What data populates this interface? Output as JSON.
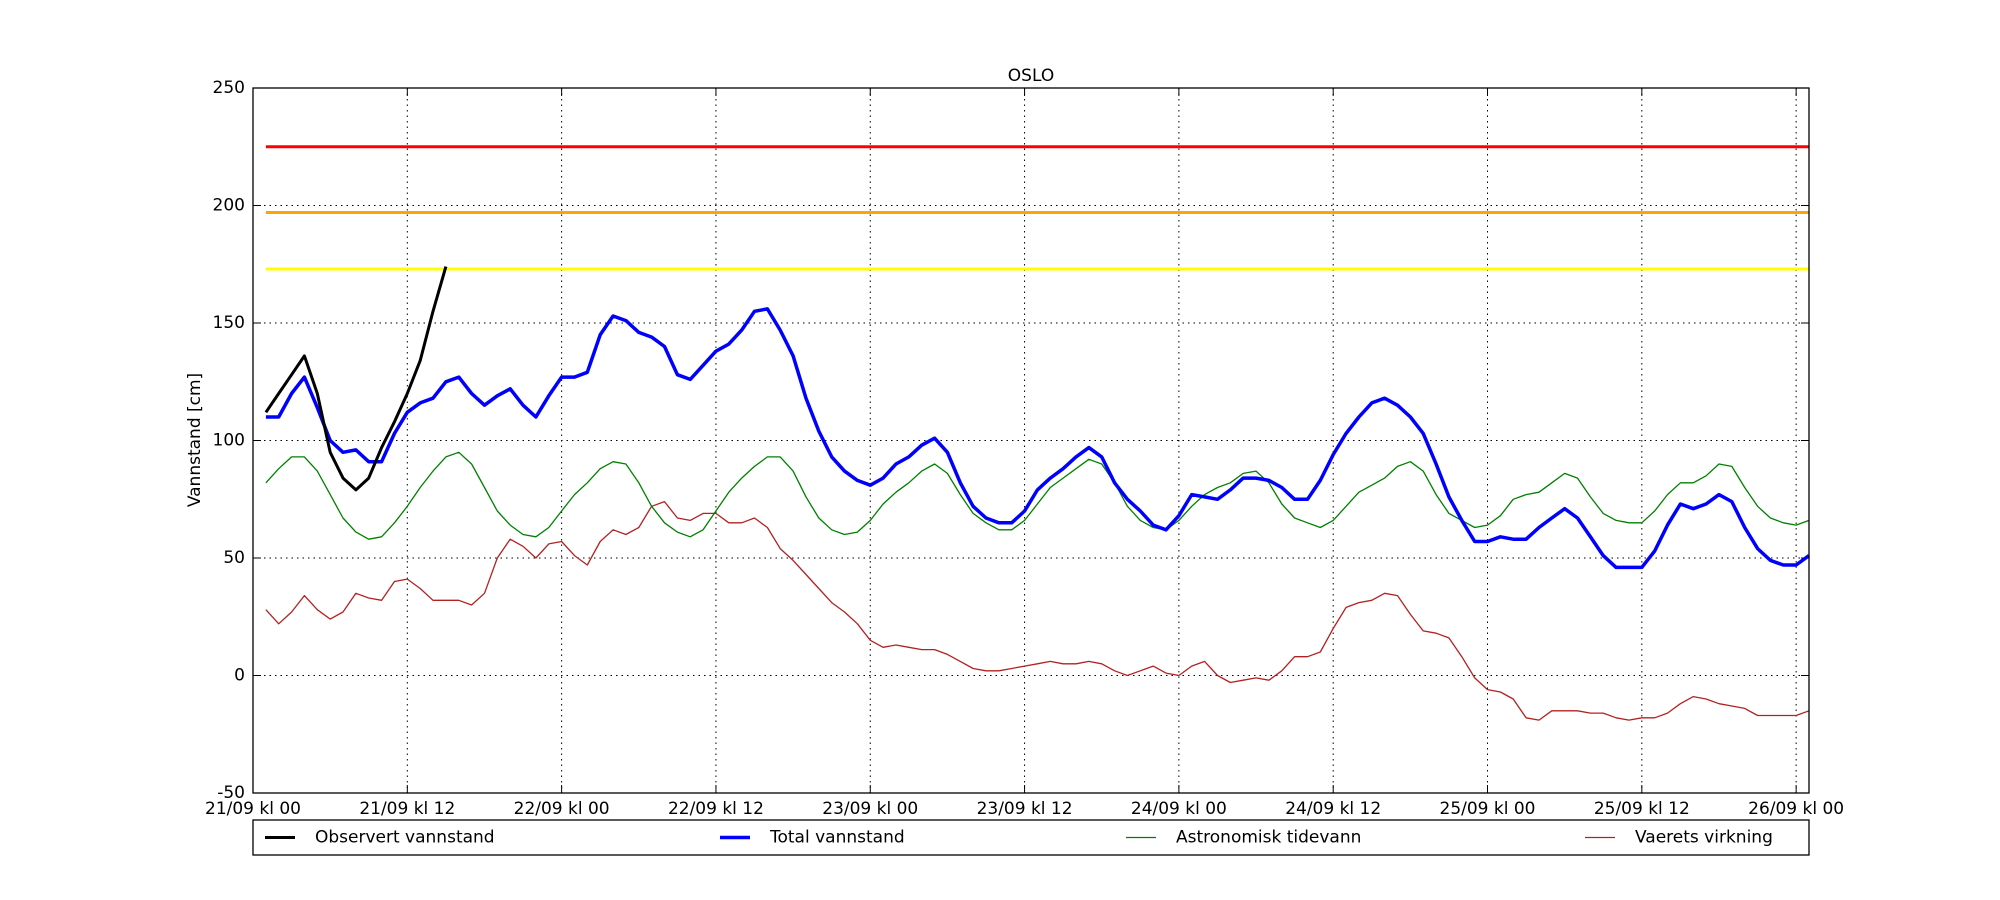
{
  "chart_data": {
    "type": "line",
    "title": "OSLO",
    "y_label": "Vannstand [cm]",
    "xlim": [
      0,
      121
    ],
    "ylim": [
      -50,
      250
    ],
    "xticks": [
      {
        "value": 0,
        "label": "21/09 kl 00"
      },
      {
        "value": 12,
        "label": "21/09 kl 12"
      },
      {
        "value": 24,
        "label": "22/09 kl 00"
      },
      {
        "value": 36,
        "label": "22/09 kl 12"
      },
      {
        "value": 48,
        "label": "23/09 kl 00"
      },
      {
        "value": 60,
        "label": "23/09 kl 12"
      },
      {
        "value": 72,
        "label": "24/09 kl 00"
      },
      {
        "value": 84,
        "label": "24/09 kl 12"
      },
      {
        "value": 96,
        "label": "25/09 kl 00"
      },
      {
        "value": 108,
        "label": "25/09 kl 12"
      },
      {
        "value": 120,
        "label": "26/09 kl 00"
      }
    ],
    "yticks": [
      -50,
      0,
      50,
      100,
      150,
      200,
      250
    ],
    "grid": true,
    "legend": "below",
    "thresholds": [
      {
        "value": 225,
        "color": "#ff0000"
      },
      {
        "value": 197,
        "color": "#ffa500"
      },
      {
        "value": 173,
        "color": "#ffff00"
      }
    ],
    "x": [
      1,
      2,
      3,
      4,
      5,
      6,
      7,
      8,
      9,
      10,
      11,
      12,
      13,
      14,
      15,
      16,
      17,
      18,
      19,
      20,
      21,
      22,
      23,
      24,
      25,
      26,
      27,
      28,
      29,
      30,
      31,
      32,
      33,
      34,
      35,
      36,
      37,
      38,
      39,
      40,
      41,
      42,
      43,
      44,
      45,
      46,
      47,
      48,
      49,
      50,
      51,
      52,
      53,
      54,
      55,
      56,
      57,
      58,
      59,
      60,
      61,
      62,
      63,
      64,
      65,
      66,
      67,
      68,
      69,
      70,
      71,
      72,
      73,
      74,
      75,
      76,
      77,
      78,
      79,
      80,
      81,
      82,
      83,
      84,
      85,
      86,
      87,
      88,
      89,
      90,
      91,
      92,
      93,
      94,
      95,
      96,
      97,
      98,
      99,
      100,
      101,
      102,
      103,
      104,
      105,
      106,
      107,
      108,
      109,
      110,
      111,
      112,
      113,
      114,
      115,
      116,
      117,
      118,
      119,
      120,
      121
    ],
    "series": [
      {
        "name": "Observert vannstand",
        "color": "#000000",
        "width": 3,
        "x": [
          1,
          2,
          3,
          4,
          5,
          6,
          7,
          8,
          9,
          10,
          11,
          12,
          13,
          14,
          15
        ],
        "values": [
          112,
          120,
          128,
          136,
          120,
          95,
          84,
          79,
          84,
          97,
          108,
          120,
          134,
          155,
          174
        ]
      },
      {
        "name": "Total vannstand",
        "color": "#0000ff",
        "width": 3.5,
        "values": [
          110,
          110,
          120,
          127,
          114,
          100,
          95,
          96,
          91,
          91,
          103,
          112,
          116,
          118,
          125,
          127,
          120,
          115,
          119,
          122,
          115,
          110,
          119,
          127,
          127,
          129,
          145,
          153,
          151,
          146,
          144,
          140,
          128,
          126,
          132,
          138,
          141,
          147,
          155,
          156,
          147,
          136,
          118,
          104,
          93,
          87,
          83,
          81,
          84,
          90,
          93,
          98,
          101,
          95,
          82,
          72,
          67,
          65,
          65,
          70,
          79,
          84,
          88,
          93,
          97,
          93,
          82,
          75,
          70,
          64,
          62,
          68,
          77,
          76,
          75,
          79,
          84,
          84,
          83,
          80,
          75,
          75,
          83,
          94,
          103,
          110,
          116,
          118,
          115,
          110,
          103,
          90,
          76,
          66,
          57,
          57,
          59,
          58,
          58,
          63,
          67,
          71,
          67,
          59,
          51,
          46,
          46,
          46,
          53,
          64,
          73,
          71,
          73,
          77,
          74,
          63,
          54,
          49,
          47,
          47,
          51
        ]
      },
      {
        "name": "Astronomisk tidevann",
        "color": "#008000",
        "width": 1.3,
        "values": [
          82,
          88,
          93,
          93,
          87,
          77,
          67,
          61,
          58,
          59,
          65,
          72,
          80,
          87,
          93,
          95,
          90,
          80,
          70,
          64,
          60,
          59,
          63,
          70,
          77,
          82,
          88,
          91,
          90,
          82,
          72,
          65,
          61,
          59,
          62,
          70,
          78,
          84,
          89,
          93,
          93,
          87,
          76,
          67,
          62,
          60,
          61,
          66,
          73,
          78,
          82,
          87,
          90,
          86,
          77,
          69,
          65,
          62,
          62,
          66,
          73,
          80,
          84,
          88,
          92,
          90,
          82,
          72,
          66,
          63,
          62,
          66,
          72,
          77,
          80,
          82,
          86,
          87,
          82,
          73,
          67,
          65,
          63,
          66,
          72,
          78,
          81,
          84,
          89,
          91,
          87,
          77,
          69,
          66,
          63,
          64,
          68,
          75,
          77,
          78,
          82,
          86,
          84,
          76,
          69,
          66,
          65,
          65,
          70,
          77,
          82,
          82,
          85,
          90,
          89,
          80,
          72,
          67,
          65,
          64,
          66
        ]
      },
      {
        "name": "Vaerets virkning",
        "color": "#b22222",
        "width": 1.3,
        "values": [
          28,
          22,
          27,
          34,
          28,
          24,
          27,
          35,
          33,
          32,
          40,
          41,
          37,
          32,
          32,
          32,
          30,
          35,
          50,
          58,
          55,
          50,
          56,
          57,
          51,
          47,
          57,
          62,
          60,
          63,
          72,
          74,
          67,
          66,
          69,
          69,
          65,
          65,
          67,
          63,
          54,
          49,
          43,
          37,
          31,
          27,
          22,
          15,
          12,
          13,
          12,
          11,
          11,
          9,
          6,
          3,
          2,
          2,
          3,
          4,
          5,
          6,
          5,
          5,
          6,
          5,
          2,
          0,
          2,
          4,
          1,
          0,
          4,
          6,
          0,
          -3,
          -2,
          -1,
          -2,
          2,
          8,
          8,
          10,
          20,
          29,
          31,
          32,
          35,
          34,
          26,
          19,
          18,
          16,
          8,
          -1,
          -6,
          -7,
          -10,
          -18,
          -19,
          -15,
          -15,
          -15,
          -16,
          -16,
          -18,
          -19,
          -18,
          -18,
          -16,
          -12,
          -9,
          -10,
          -12,
          -13,
          -14,
          -17,
          -17,
          -17,
          -17,
          -15
        ]
      }
    ]
  }
}
